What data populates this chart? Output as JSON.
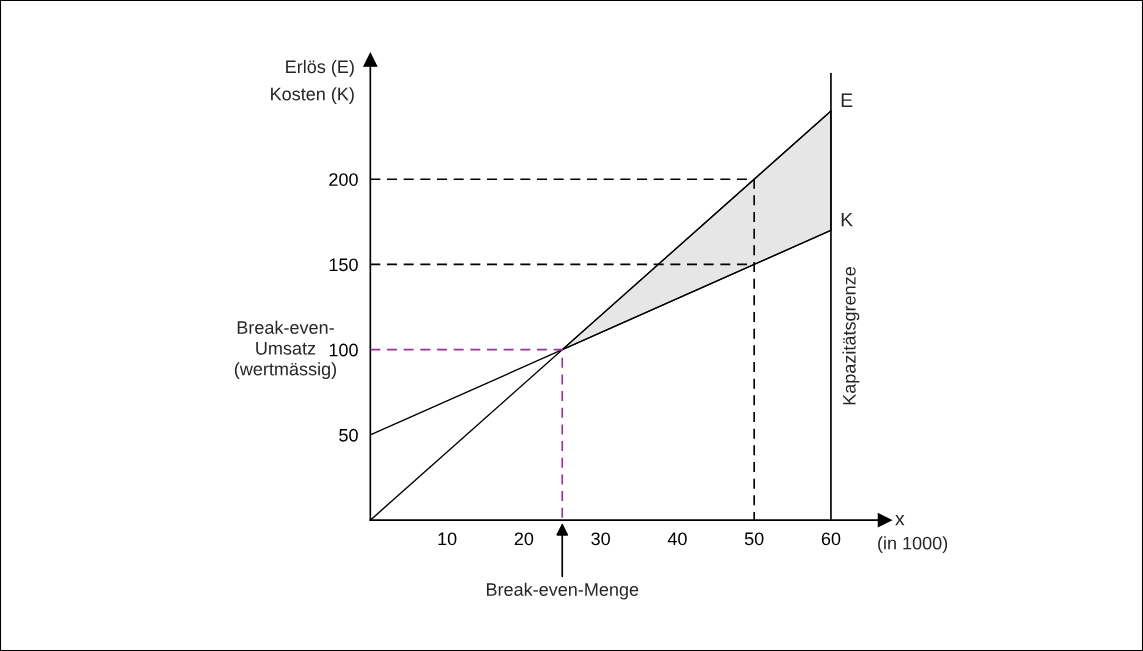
{
  "chart_data": {
    "type": "line",
    "ylabel": "Erlös (E)\nKosten (K)",
    "xlabel": "x",
    "xlim": [
      0,
      67
    ],
    "ylim": [
      0,
      270
    ],
    "xticks": [
      10,
      20,
      30,
      40,
      50,
      60
    ],
    "yticks": [
      50,
      100,
      150,
      200
    ],
    "series": [
      {
        "name": "E",
        "color": "#000000",
        "x": [
          0,
          60
        ],
        "values": [
          0,
          240
        ]
      },
      {
        "name": "K",
        "color": "#000000",
        "x": [
          0,
          60
        ],
        "values": [
          50,
          170
        ]
      },
      {
        "type": "area",
        "color": "#e6e6e6",
        "x": [
          25,
          60
        ],
        "values": [
          100,
          240
        ]
      },
      {
        "color": "#000000",
        "line_style": "dashed",
        "x": [
          0,
          50,
          50
        ],
        "values": [
          200,
          200,
          0
        ]
      },
      {
        "color": "#000000",
        "line_style": "dashed",
        "x": [
          0,
          50
        ],
        "values": [
          150,
          150
        ]
      },
      {
        "color": "#993399",
        "line_style": "dashed",
        "x": [
          0,
          25,
          25
        ],
        "values": [
          100,
          100,
          0
        ]
      }
    ],
    "ref_lines": [
      {
        "axis": "x",
        "value": 60,
        "label": "Kapazitätsgrenze",
        "color": "#000000"
      }
    ],
    "annotations": [
      "Break-even-\nUmsatz\n(wertmässig)",
      {
        "text": "Break-even-Menge",
        "x": 25,
        "y": 0
      },
      "(in 1000)"
    ],
    "marker": "none",
    "grid": false,
    "legend": false
  }
}
